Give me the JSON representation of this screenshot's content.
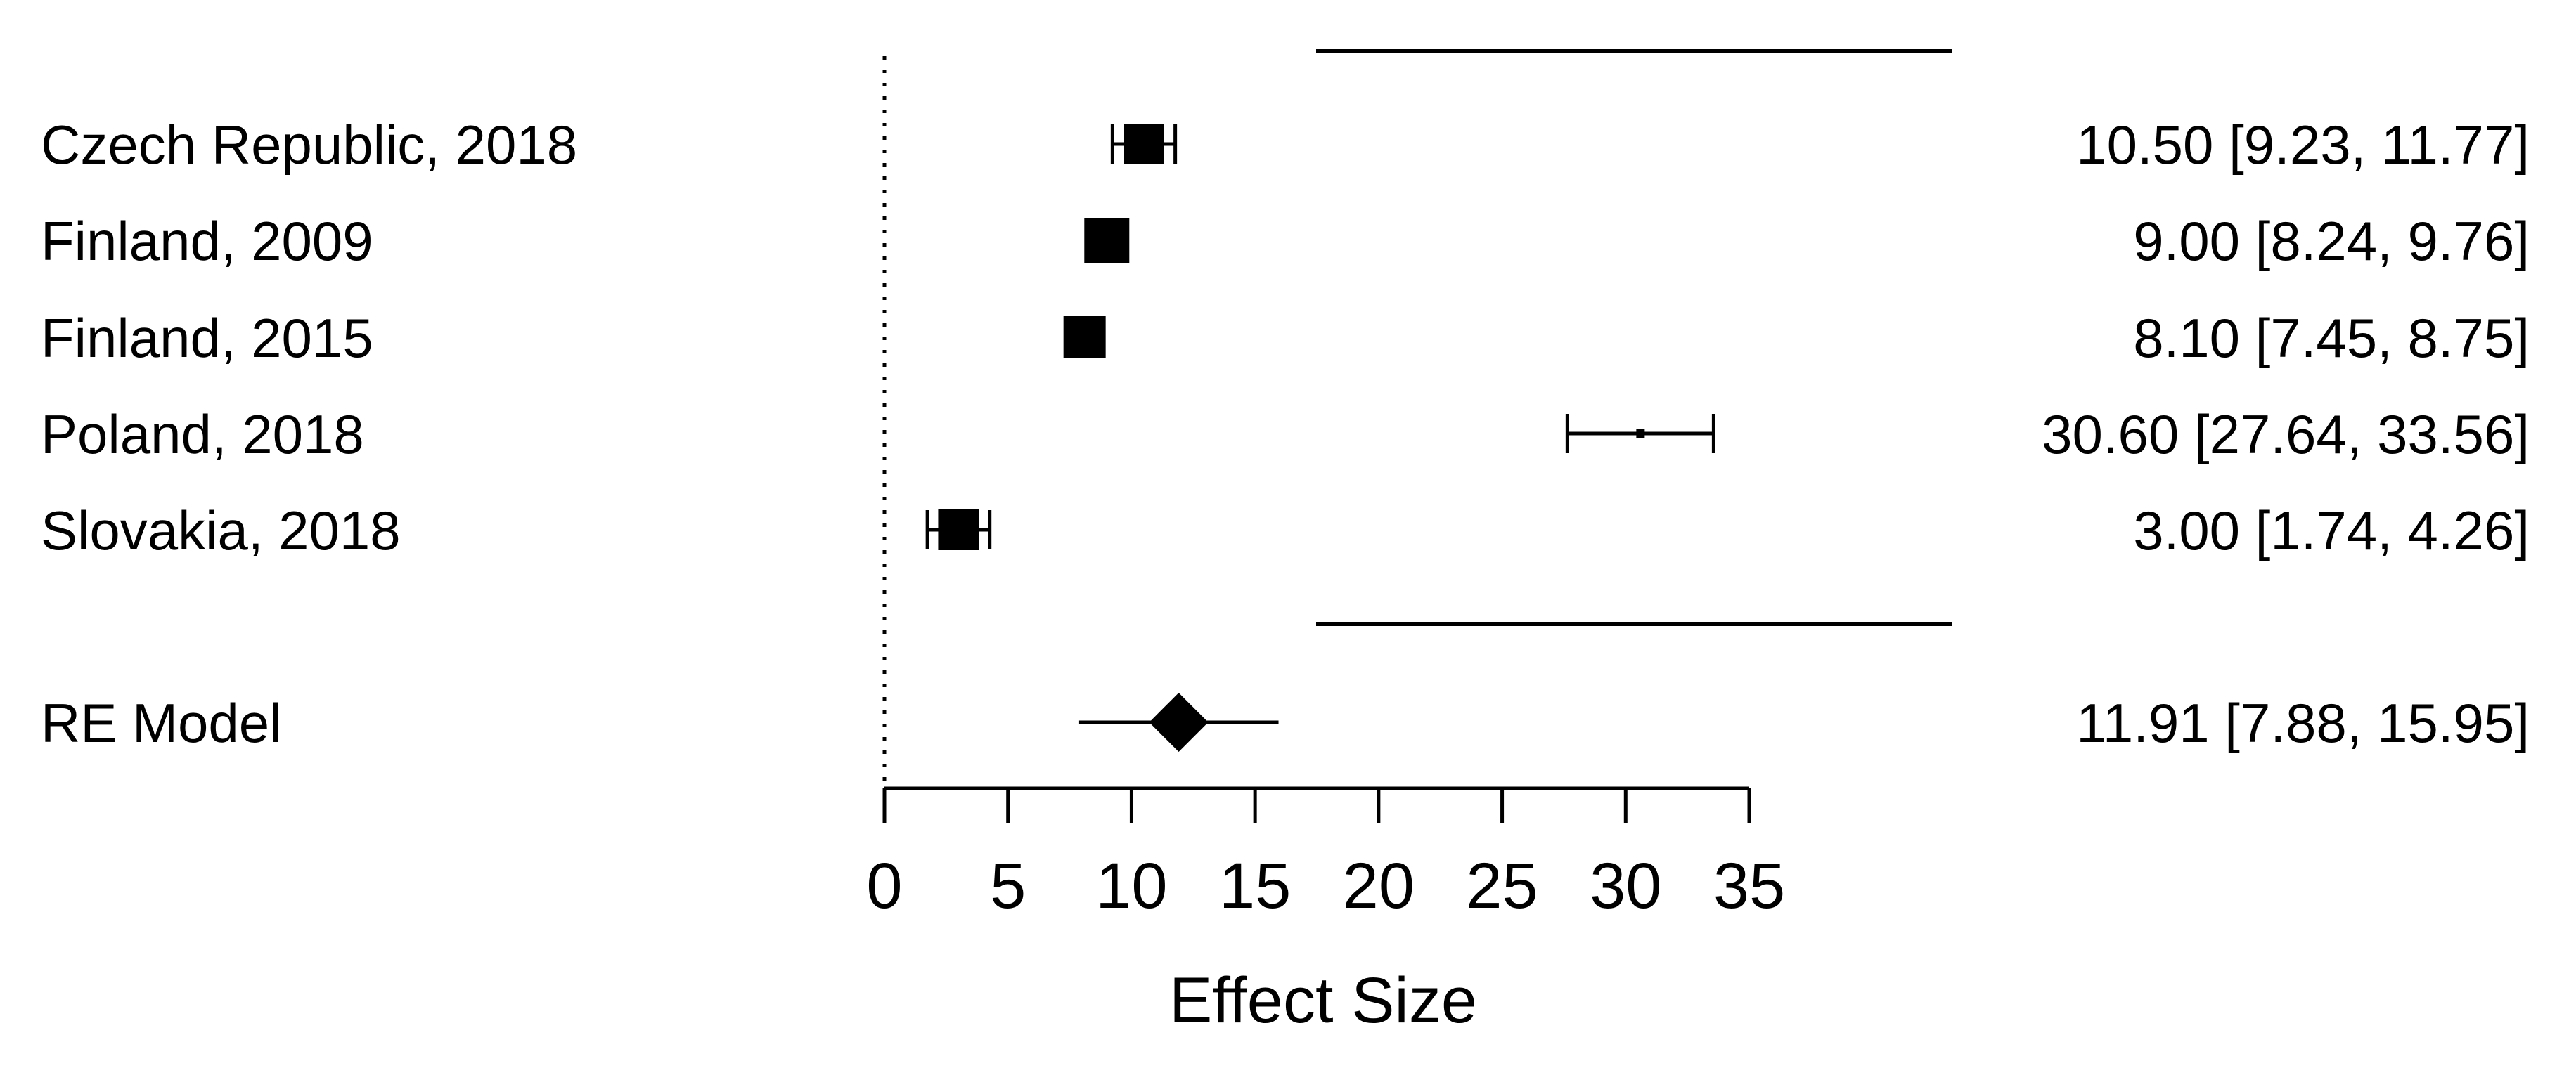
{
  "chart_data": {
    "type": "forest",
    "xlabel": "Effect Size",
    "xlim": [
      0,
      35
    ],
    "xticks": [
      0,
      5,
      10,
      15,
      20,
      25,
      30,
      35
    ],
    "reference_line": 0,
    "studies": [
      {
        "label": "Czech Republic, 2018",
        "estimate": 10.5,
        "ci_lower": 9.23,
        "ci_upper": 11.77,
        "text": "10.50 [9.23, 11.77]"
      },
      {
        "label": "Finland, 2009",
        "estimate": 9.0,
        "ci_lower": 8.24,
        "ci_upper": 9.76,
        "text": "9.00 [8.24, 9.76]"
      },
      {
        "label": "Finland, 2015",
        "estimate": 8.1,
        "ci_lower": 7.45,
        "ci_upper": 8.75,
        "text": "8.10 [7.45, 8.75]"
      },
      {
        "label": "Poland, 2018",
        "estimate": 30.6,
        "ci_lower": 27.64,
        "ci_upper": 33.56,
        "text": "30.60 [27.64, 33.56]"
      },
      {
        "label": "Slovakia, 2018",
        "estimate": 3.0,
        "ci_lower": 1.74,
        "ci_upper": 4.26,
        "text": "3.00 [1.74, 4.26]"
      }
    ],
    "summary": {
      "label": "RE Model",
      "estimate": 11.91,
      "ci_lower": 7.88,
      "ci_upper": 15.95,
      "text": "11.91 [7.88, 15.95]"
    }
  }
}
